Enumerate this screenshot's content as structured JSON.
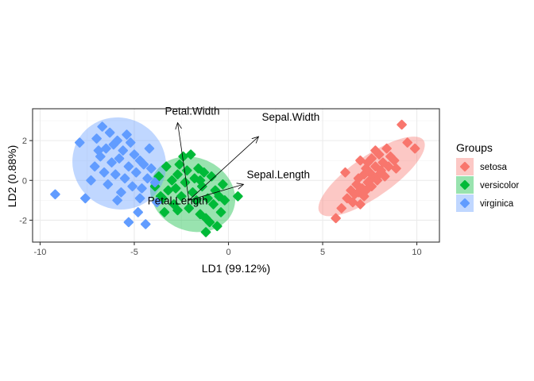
{
  "chart_data": {
    "type": "scatter",
    "title": "",
    "xlabel": "LD1 (99.12%)",
    "ylabel": "LD2 (0.88%)",
    "xlim": [
      -10.4,
      11.2
    ],
    "ylim": [
      -3.1,
      3.6
    ],
    "x_ticks": [
      -10,
      -5,
      0,
      5,
      10
    ],
    "x_tick_labels": [
      "-10",
      "-5",
      "0",
      "5",
      "10"
    ],
    "y_ticks": [
      -2,
      0,
      2
    ],
    "y_tick_labels": [
      "-2",
      "0",
      "2"
    ],
    "grid": true,
    "legend": {
      "title": "Groups",
      "position": "right"
    },
    "series": [
      {
        "name": "setosa",
        "color": "#F8766D",
        "ellipse": {
          "cx": 7.6,
          "cy": 0.2,
          "rx": 3.3,
          "ry": 1.05,
          "angle_deg": 33
        },
        "points": [
          [
            5.7,
            -1.9
          ],
          [
            6.0,
            -1.4
          ],
          [
            6.3,
            -0.9
          ],
          [
            6.5,
            -0.5
          ],
          [
            6.6,
            -1.1
          ],
          [
            6.7,
            -0.7
          ],
          [
            6.8,
            -0.2
          ],
          [
            6.9,
            -0.6
          ],
          [
            6.9,
            0.1
          ],
          [
            7.0,
            -1.2
          ],
          [
            7.1,
            -0.4
          ],
          [
            7.2,
            0.3
          ],
          [
            7.2,
            -0.8
          ],
          [
            7.3,
            0.6
          ],
          [
            7.4,
            -0.1
          ],
          [
            7.4,
            0.9
          ],
          [
            7.5,
            0.4
          ],
          [
            7.6,
            -0.3
          ],
          [
            7.6,
            1.1
          ],
          [
            7.7,
            0.2
          ],
          [
            7.8,
            0.7
          ],
          [
            7.9,
            0.0
          ],
          [
            8.0,
            1.3
          ],
          [
            8.1,
            0.5
          ],
          [
            8.2,
            0.9
          ],
          [
            8.3,
            0.2
          ],
          [
            8.4,
            1.6
          ],
          [
            8.5,
            0.7
          ],
          [
            8.6,
            1.2
          ],
          [
            8.8,
            1.0
          ],
          [
            8.9,
            0.6
          ],
          [
            9.2,
            2.8
          ],
          [
            9.5,
            1.9
          ],
          [
            9.9,
            1.6
          ],
          [
            7.0,
            1.0
          ],
          [
            7.8,
            1.5
          ],
          [
            6.2,
            0.4
          ],
          [
            7.3,
            -0.5
          ],
          [
            8.0,
            0.3
          ],
          [
            7.5,
            0.0
          ]
        ]
      },
      {
        "name": "versicolor",
        "color": "#00BA38",
        "ellipse": {
          "cx": -1.9,
          "cy": -0.7,
          "rx": 2.3,
          "ry": 1.85,
          "angle_deg": -18
        },
        "points": [
          [
            -3.9,
            -0.3
          ],
          [
            -3.7,
            0.2
          ],
          [
            -3.5,
            -0.9
          ],
          [
            -3.4,
            -1.6
          ],
          [
            -3.3,
            0.7
          ],
          [
            -3.2,
            -0.5
          ],
          [
            -3.0,
            0.0
          ],
          [
            -2.9,
            -1.2
          ],
          [
            -2.8,
            -0.4
          ],
          [
            -2.7,
            0.3
          ],
          [
            -2.6,
            0.8
          ],
          [
            -2.5,
            -0.8
          ],
          [
            -2.4,
            1.2
          ],
          [
            -2.3,
            -0.1
          ],
          [
            -2.2,
            0.5
          ],
          [
            -2.1,
            -1.4
          ],
          [
            -2.0,
            1.3
          ],
          [
            -1.9,
            -0.6
          ],
          [
            -1.8,
            0.1
          ],
          [
            -1.7,
            -1.0
          ],
          [
            -1.6,
            0.6
          ],
          [
            -1.5,
            -1.7
          ],
          [
            -1.4,
            -0.3
          ],
          [
            -1.3,
            0.4
          ],
          [
            -1.2,
            -1.9
          ],
          [
            -1.1,
            -0.9
          ],
          [
            -1.0,
            -2.1
          ],
          [
            -0.9,
            0.2
          ],
          [
            -0.8,
            -1.2
          ],
          [
            -0.7,
            -0.5
          ],
          [
            -0.6,
            -2.3
          ],
          [
            -0.5,
            -0.8
          ],
          [
            -0.4,
            -1.6
          ],
          [
            -0.3,
            -0.2
          ],
          [
            -0.2,
            -1.0
          ],
          [
            0.5,
            -0.8
          ],
          [
            -1.2,
            -2.6
          ],
          [
            -3.6,
            -0.8
          ],
          [
            -2.7,
            -1.5
          ],
          [
            -1.5,
            0.0
          ]
        ]
      },
      {
        "name": "virginica",
        "color": "#619CFF",
        "ellipse": {
          "cx": -5.8,
          "cy": 0.85,
          "rx": 2.5,
          "ry": 2.3,
          "angle_deg": -15
        },
        "points": [
          [
            -9.2,
            -0.7
          ],
          [
            -7.9,
            1.9
          ],
          [
            -7.6,
            -0.9
          ],
          [
            -7.3,
            0.0
          ],
          [
            -7.1,
            0.7
          ],
          [
            -7.0,
            2.1
          ],
          [
            -6.8,
            1.2
          ],
          [
            -6.7,
            2.7
          ],
          [
            -6.6,
            0.4
          ],
          [
            -6.5,
            1.6
          ],
          [
            -6.4,
            -0.2
          ],
          [
            -6.3,
            2.4
          ],
          [
            -6.2,
            0.9
          ],
          [
            -6.1,
            1.8
          ],
          [
            -6.0,
            0.3
          ],
          [
            -5.9,
            2.0
          ],
          [
            -5.8,
            1.1
          ],
          [
            -5.7,
            -0.6
          ],
          [
            -5.6,
            1.5
          ],
          [
            -5.5,
            0.1
          ],
          [
            -5.4,
            2.3
          ],
          [
            -5.3,
            0.7
          ],
          [
            -5.2,
            1.9
          ],
          [
            -5.1,
            -0.3
          ],
          [
            -5.0,
            1.3
          ],
          [
            -4.9,
            0.4
          ],
          [
            -4.8,
            -1.6
          ],
          [
            -4.7,
            1.0
          ],
          [
            -4.6,
            -0.4
          ],
          [
            -4.5,
            0.8
          ],
          [
            -4.4,
            -2.2
          ],
          [
            -4.3,
            0.1
          ],
          [
            -4.2,
            1.6
          ],
          [
            -4.1,
            0.6
          ],
          [
            -3.9,
            -0.1
          ],
          [
            -3.8,
            -1.1
          ],
          [
            -5.3,
            -2.1
          ],
          [
            -5.9,
            -1.0
          ],
          [
            -6.9,
            1.5
          ],
          [
            -4.7,
            -0.9
          ]
        ]
      }
    ],
    "loadings": [
      {
        "name": "Petal.Width",
        "x": -2.7,
        "y": 2.9
      },
      {
        "name": "Sepal.Width",
        "x": 1.6,
        "y": 2.2
      },
      {
        "name": "Sepal.Length",
        "x": 0.8,
        "y": -0.2
      },
      {
        "name": "Petal.Length",
        "x": -2.1,
        "y": -1.0
      }
    ],
    "loadings_origin": {
      "x": -2.1,
      "y": -1.0
    }
  }
}
